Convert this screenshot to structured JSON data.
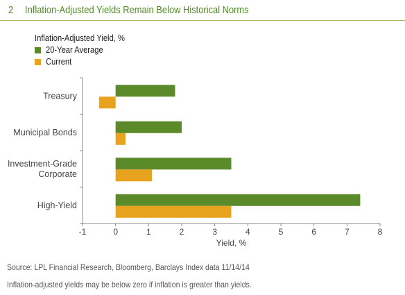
{
  "figure": {
    "number": "2",
    "title": "Inflation-Adjusted Yields Remain Below Historical Norms"
  },
  "legend": {
    "title": "Inflation-Adjusted Yield, %",
    "items": [
      {
        "label": "20-Year Average",
        "color": "#5a8a2a"
      },
      {
        "label": "Current",
        "color": "#e8a31e"
      }
    ]
  },
  "chart_data": {
    "type": "bar",
    "orientation": "horizontal",
    "categories": [
      "Treasury",
      "Municipal Bonds",
      "Investment-Grade Corporate",
      "High-Yield"
    ],
    "category_lines": [
      [
        "Treasury"
      ],
      [
        "Municipal Bonds"
      ],
      [
        "Investment-Grade",
        "Corporate"
      ],
      [
        "High-Yield"
      ]
    ],
    "series": [
      {
        "name": "20-Year Average",
        "color": "#5a8a2a",
        "values": [
          1.8,
          2.0,
          3.5,
          7.4
        ]
      },
      {
        "name": "Current",
        "color": "#e8a31e",
        "values": [
          -0.5,
          0.3,
          1.1,
          3.5
        ]
      }
    ],
    "xlabel": "Yield, %",
    "xlim": [
      -1,
      8
    ],
    "xticks": [
      "-1",
      "0",
      "1",
      "2",
      "3",
      "4",
      "5",
      "6",
      "7",
      "8"
    ],
    "grid": false,
    "legend_position": "top-left"
  },
  "footer": {
    "source": "Source: LPL Financial Research, Bloomberg, Barclays Index data   11/14/14",
    "note": "Inflation-adjusted yields may be below zero if inflation is greater than yields."
  }
}
